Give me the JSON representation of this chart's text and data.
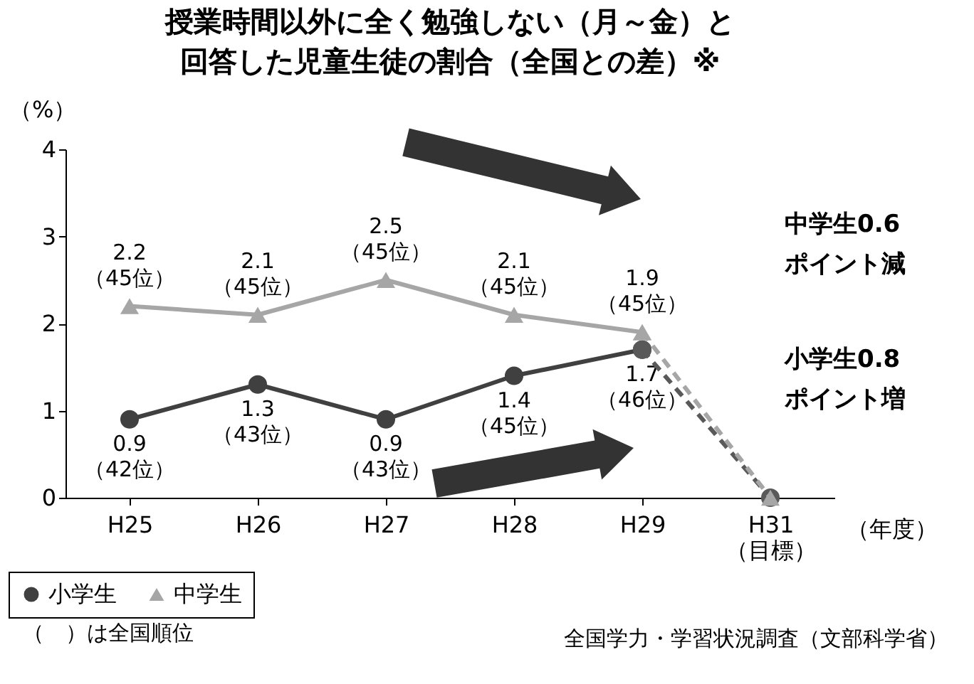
{
  "chart_data": {
    "type": "line",
    "title": "授業時間以外に全く勉強しない（月～金）と回答した児童生徒の割合（全国との差）※",
    "xlabel": "（年度）",
    "ylabel": "（%）",
    "categories": [
      "H25",
      "H26",
      "H27",
      "H28",
      "H29",
      "H31\n（目標）"
    ],
    "ylim": [
      0,
      4
    ],
    "yticks": [
      0,
      1,
      2,
      3,
      4
    ],
    "grid": false,
    "legend": "bottom left",
    "series": [
      {
        "name": "小学生",
        "color": "#404040",
        "marker": "circle",
        "values": [
          0.9,
          1.3,
          0.9,
          1.4,
          1.7,
          null
        ],
        "value_labels": [
          "0.9\n（42位）",
          "1.3\n（43位）",
          "0.9\n（43位）",
          "1.4\n（45位）",
          "1.7\n（46位）",
          null
        ]
      },
      {
        "name": "中学生",
        "color": "#a6a6a6",
        "marker": "triangle",
        "values": [
          2.2,
          2.1,
          2.5,
          2.1,
          1.9,
          null
        ],
        "value_labels": [
          "2.2\n（45位）",
          "2.1\n（45位）",
          "2.5\n（45位）",
          "2.1\n（45位）",
          "1.9\n（45位）",
          null
        ]
      },
      {
        "color": "#595959",
        "marker": "circle",
        "line_style": "dashed",
        "values": [
          null,
          null,
          null,
          null,
          1.7,
          0
        ]
      },
      {
        "color": "#a6a6a6",
        "marker": "triangle",
        "line_style": "dashed",
        "values": [
          null,
          null,
          null,
          null,
          1.9,
          0
        ]
      }
    ],
    "annotations": [
      "中学生0.6\nポイント減",
      "小学生0.8\nポイント増",
      "（　）は全国順位",
      "全国学力・学習状況調査（文部科学省）"
    ]
  }
}
